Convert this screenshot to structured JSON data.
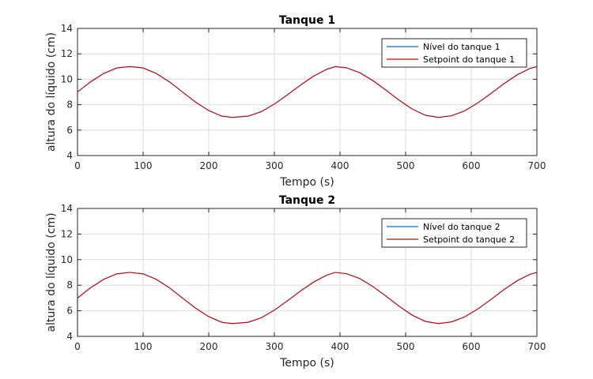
{
  "chart_data": [
    {
      "type": "line",
      "title": "Tanque 1",
      "xlabel": "Tempo (s)",
      "ylabel": "altura do líquido (cm)",
      "xlim": [
        0,
        700
      ],
      "ylim": [
        4,
        14
      ],
      "xticks": [
        0,
        100,
        200,
        300,
        400,
        500,
        600,
        700
      ],
      "yticks": [
        4,
        6,
        8,
        10,
        12,
        14
      ],
      "grid": true,
      "legend_position": "top-right",
      "series": [
        {
          "name": "Nível do tanque 1",
          "color": "#0072BD",
          "x": [
            0,
            0,
            0,
            20,
            40,
            60,
            80,
            100,
            120,
            140,
            160,
            180,
            200,
            220,
            236,
            260,
            280,
            300,
            320,
            340,
            360,
            380,
            393,
            410,
            430,
            450,
            470,
            490,
            510,
            530,
            550,
            570,
            590,
            610,
            630,
            650,
            670,
            690,
            700
          ],
          "y": [
            4,
            9.0,
            9.0,
            9.8,
            10.46,
            10.89,
            11.0,
            10.89,
            10.46,
            9.8,
            9.0,
            8.2,
            7.54,
            7.1,
            7.0,
            7.1,
            7.45,
            8.05,
            8.78,
            9.55,
            10.25,
            10.79,
            11.0,
            10.9,
            10.52,
            9.9,
            9.15,
            8.36,
            7.66,
            7.17,
            7.0,
            7.13,
            7.52,
            8.14,
            8.88,
            9.66,
            10.35,
            10.86,
            11.0
          ]
        },
        {
          "name": "Setpoint do tanque 1",
          "color": "#D90000",
          "x": [
            0,
            20,
            40,
            60,
            80,
            100,
            120,
            140,
            160,
            180,
            200,
            220,
            236,
            260,
            280,
            300,
            320,
            340,
            360,
            380,
            393,
            410,
            430,
            450,
            470,
            490,
            510,
            530,
            550,
            570,
            590,
            610,
            630,
            650,
            670,
            690,
            700
          ],
          "y": [
            9.0,
            9.8,
            10.46,
            10.89,
            11.0,
            10.89,
            10.46,
            9.8,
            9.0,
            8.2,
            7.54,
            7.1,
            7.0,
            7.1,
            7.45,
            8.05,
            8.78,
            9.55,
            10.25,
            10.79,
            11.0,
            10.9,
            10.52,
            9.9,
            9.15,
            8.36,
            7.66,
            7.17,
            7.0,
            7.13,
            7.52,
            8.14,
            8.88,
            9.66,
            10.35,
            10.86,
            11.0
          ]
        }
      ]
    },
    {
      "type": "line",
      "title": "Tanque 2",
      "xlabel": "Tempo (s)",
      "ylabel": "altura do líquido (cm)",
      "xlim": [
        0,
        700
      ],
      "ylim": [
        4,
        14
      ],
      "xticks": [
        0,
        100,
        200,
        300,
        400,
        500,
        600,
        700
      ],
      "yticks": [
        4,
        6,
        8,
        10,
        12,
        14
      ],
      "grid": true,
      "legend_position": "top-right",
      "series": [
        {
          "name": "Nível do tanque 2",
          "color": "#0072BD",
          "x": [
            0,
            0,
            0,
            20,
            40,
            60,
            80,
            100,
            120,
            140,
            160,
            180,
            200,
            220,
            236,
            260,
            280,
            300,
            320,
            340,
            360,
            380,
            393,
            410,
            430,
            450,
            470,
            490,
            510,
            530,
            550,
            570,
            590,
            610,
            630,
            650,
            670,
            690,
            700
          ],
          "y": [
            4,
            7.0,
            7.0,
            7.8,
            8.46,
            8.89,
            9.0,
            8.89,
            8.46,
            7.8,
            7.0,
            6.2,
            5.54,
            5.1,
            5.0,
            5.1,
            5.45,
            6.05,
            6.78,
            7.55,
            8.25,
            8.79,
            9.0,
            8.9,
            8.52,
            7.9,
            7.15,
            6.36,
            5.66,
            5.17,
            5.0,
            5.13,
            5.52,
            6.14,
            6.88,
            7.66,
            8.35,
            8.86,
            9.0
          ]
        },
        {
          "name": "Setpoint do tanque 2",
          "color": "#D90000",
          "x": [
            0,
            20,
            40,
            60,
            80,
            100,
            120,
            140,
            160,
            180,
            200,
            220,
            236,
            260,
            280,
            300,
            320,
            340,
            360,
            380,
            393,
            410,
            430,
            450,
            470,
            490,
            510,
            530,
            550,
            570,
            590,
            610,
            630,
            650,
            670,
            690,
            700
          ],
          "y": [
            7.0,
            7.8,
            8.46,
            8.89,
            9.0,
            8.89,
            8.46,
            7.8,
            7.0,
            6.2,
            5.54,
            5.1,
            5.0,
            5.1,
            5.45,
            6.05,
            6.78,
            7.55,
            8.25,
            8.79,
            9.0,
            8.9,
            8.52,
            7.9,
            7.15,
            6.36,
            5.66,
            5.17,
            5.0,
            5.13,
            5.52,
            6.14,
            6.88,
            7.66,
            8.35,
            8.86,
            9.0
          ]
        }
      ]
    }
  ]
}
